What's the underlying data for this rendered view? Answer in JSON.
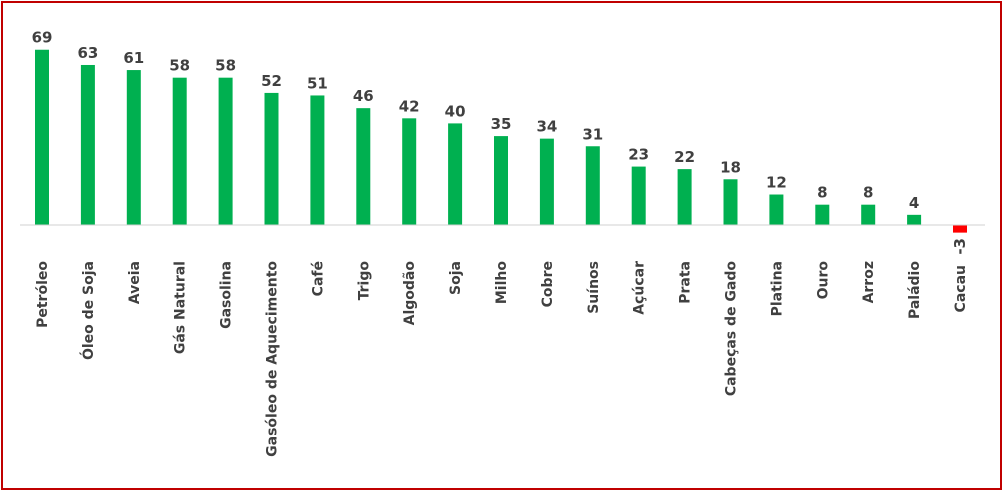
{
  "chart_data": {
    "type": "bar",
    "categories": [
      "Petróleo",
      "Óleo de Soja",
      "Aveia",
      "Gás Natural",
      "Gasolina",
      "Gasóleo de Aquecimento",
      "Café",
      "Trigo",
      "Algodão",
      "Soja",
      "Milho",
      "Cobre",
      "Suínos",
      "Açúcar",
      "Prata",
      "Cabeças de Gado",
      "Platina",
      "Ouro",
      "Arroz",
      "Paládio",
      "Cacau"
    ],
    "values": [
      69,
      63,
      61,
      58,
      58,
      52,
      51,
      46,
      42,
      40,
      35,
      34,
      31,
      23,
      22,
      18,
      12,
      8,
      8,
      4,
      -3
    ],
    "data_labels": [
      "69",
      "63",
      "61",
      "58",
      "58",
      "52",
      "51",
      "46",
      "42",
      "40",
      "35",
      "34",
      "31",
      "23",
      "22",
      "18",
      "12",
      "8",
      "8",
      "4",
      "-3"
    ],
    "title": "",
    "xlabel": "",
    "ylabel": "",
    "ylim": [
      -3,
      69
    ],
    "grid": false,
    "legend": "none",
    "colors": {
      "positive": "#00b050",
      "negative": "#ff0000",
      "frame": "#c00000",
      "axis": "#d0d0d0",
      "text": "#404040"
    }
  }
}
